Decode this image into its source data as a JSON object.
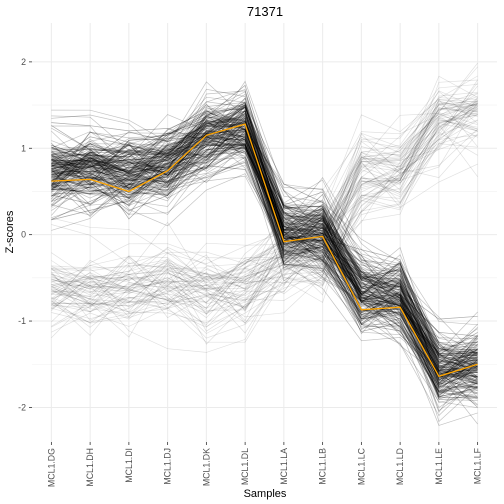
{
  "chart_data": {
    "type": "line",
    "title": "71371",
    "xlabel": "Samples",
    "ylabel": "Z-scores",
    "categories": [
      "MCL1.DG",
      "MCL1.DH",
      "MCL1.DI",
      "MCL1.DJ",
      "MCL1.DK",
      "MCL1.DL",
      "MCL1.LA",
      "MCL1.LB",
      "MCL1.LC",
      "MCL1.LD",
      "MCL1.LE",
      "MCL1.LF"
    ],
    "y_ticks": [
      -2,
      -1,
      0,
      1,
      2
    ],
    "ylim": [
      -2.4,
      2.45
    ],
    "grid": true,
    "legend": "none",
    "highlight_series": {
      "values": [
        0.62,
        0.64,
        0.5,
        0.74,
        1.15,
        1.28,
        -0.08,
        -0.02,
        -0.87,
        -0.84,
        -1.64,
        -1.5
      ],
      "color": "#FFA500"
    },
    "background_series": {
      "color": "#000000",
      "opacity": 0.12,
      "clusters": [
        {
          "count": 430,
          "spread": 0.22,
          "profile": [
            0.7,
            0.75,
            0.7,
            0.78,
            1.1,
            1.2,
            0.0,
            0.0,
            -0.7,
            -0.75,
            -1.6,
            -1.55
          ]
        },
        {
          "count": 70,
          "spread": 0.25,
          "profile": [
            -0.65,
            -0.7,
            -0.65,
            -0.55,
            -0.7,
            -0.65,
            -0.3,
            -0.2,
            0.65,
            0.7,
            1.3,
            1.4
          ]
        }
      ]
    }
  }
}
